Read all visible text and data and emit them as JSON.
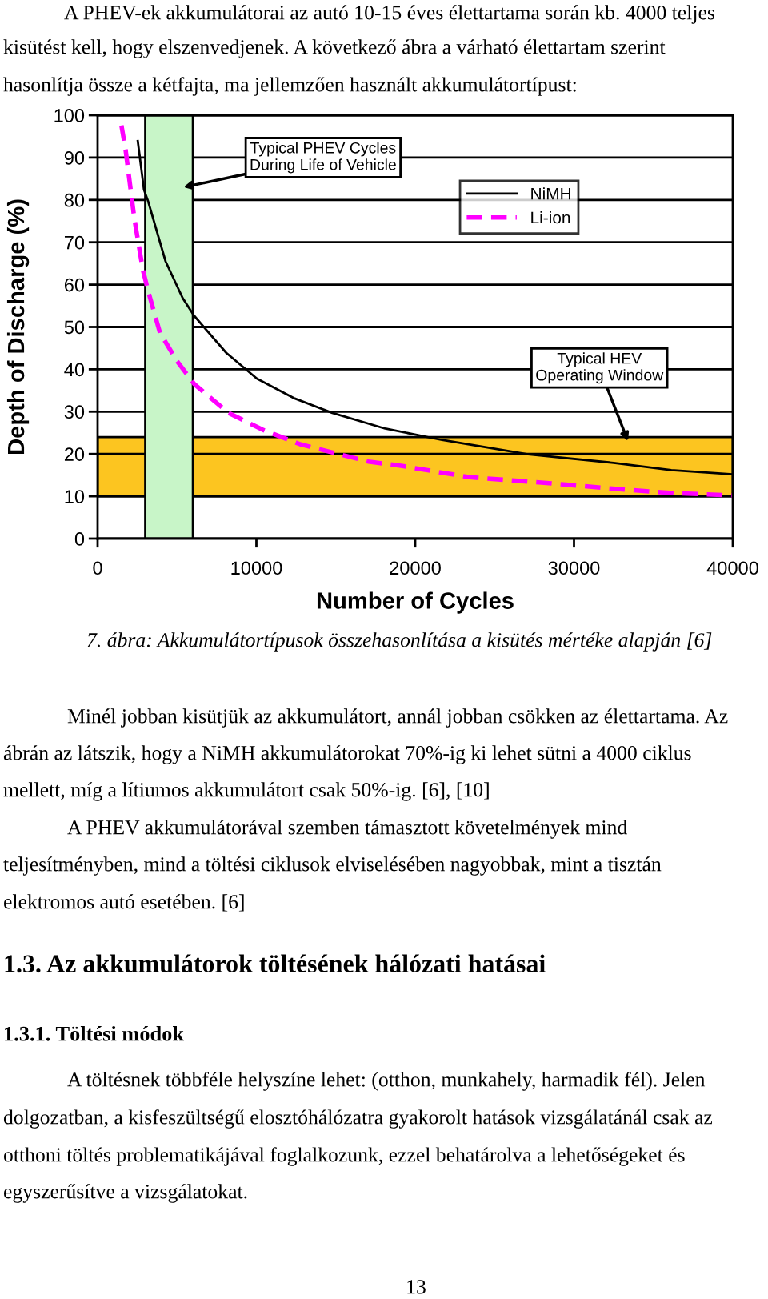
{
  "chart_data": {
    "type": "line",
    "xlabel": "Number of Cycles",
    "ylabel": "Depth of Discharge (%)",
    "xlim": [
      0,
      40000
    ],
    "xticks": [
      0,
      10000,
      20000,
      30000,
      40000
    ],
    "ylim": [
      0,
      100
    ],
    "yticks": [
      0,
      10,
      20,
      30,
      40,
      50,
      60,
      70,
      80,
      90,
      100
    ],
    "grid": "y",
    "legend": "top right",
    "marker": "none",
    "series": [
      {
        "name": "NiMH",
        "color": "#000000",
        "line_style": "solid",
        "x": [
          2530,
          2920,
          3180,
          4280,
          5360,
          6070,
          8100,
          10030,
          12420,
          14780,
          18110,
          21690,
          27110,
          32500,
          36130,
          40000
        ],
        "values": [
          93.9,
          82.4,
          79.7,
          65.5,
          56.8,
          52.7,
          43.9,
          37.8,
          33.1,
          29.7,
          26.0,
          23.3,
          19.9,
          17.9,
          16.2,
          15.2
        ]
      },
      {
        "name": "Li-ion",
        "color": "#ff00ff",
        "line_style": "dashed",
        "x": [
          1500,
          1760,
          2310,
          2850,
          3210,
          3930,
          5010,
          6090,
          8250,
          10410,
          12750,
          17060,
          19110,
          23430,
          28110,
          32430,
          36020,
          40000
        ],
        "values": [
          97.6,
          91.9,
          75.7,
          63.5,
          58.1,
          48.6,
          41.9,
          36.5,
          29.7,
          25.7,
          22.3,
          18.2,
          17.2,
          14.5,
          13.2,
          11.8,
          10.8,
          10.2
        ]
      }
    ],
    "bands": [
      {
        "axis": "y",
        "from": 10,
        "to": 24,
        "color": "#fcc520",
        "label": "Typical HEV\nOperating Window"
      },
      {
        "axis": "x",
        "from": 3000,
        "to": 6000,
        "color": "#c8f5c8",
        "label": "Typical PHEV Cycles\nDuring Life of Vehicle"
      }
    ],
    "annotations": [
      "A PHEV-ek akkumulátorai az autó 10-15 éves élettartama során kb. 4000 teljes",
      "kisütést kell, hogy elszenvedjenek. A következő ábra a várható élettartam szerint",
      "hasonlítja össze a kétfajta, ma jellemzően használt akkumulátortípust:",
      "7. ábra: Akkumulátortípusok összehasonlítása a kisütés mértéke alapján [6]",
      "Minél jobban kisütjük az akkumulátort, annál jobban csökken az élettartama. Az",
      "ábrán az látszik, hogy a NiMH akkumulátorokat 70%-ig ki lehet sütni a 4000 ciklus",
      "mellett, míg a lítiumos akkumulátort csak 50%-ig. [6], [10]",
      "A PHEV akkumulátorával szemben támasztott követelmények mind",
      "teljesítményben, mind a töltési ciklusok elviselésében nagyobbak, mint a tisztán",
      "elektromos autó esetében. [6]",
      "1.3. Az akkumulátorok töltésének hálózati hatásai",
      "1.3.1. Töltési módok",
      "A töltésnek többféle helyszíne lehet: (otthon, munkahely, harmadik fél). Jelen",
      "dolgozatban, a kisfeszültségű elosztóhálózatra gyakorolt hatások vizsgálatánál csak az",
      "otthoni töltés problematikájával foglalkozunk, ezzel behatárolva a lehetőségeket és",
      "egyszerűsítve a vizsgálatokat.",
      "13"
    ]
  }
}
